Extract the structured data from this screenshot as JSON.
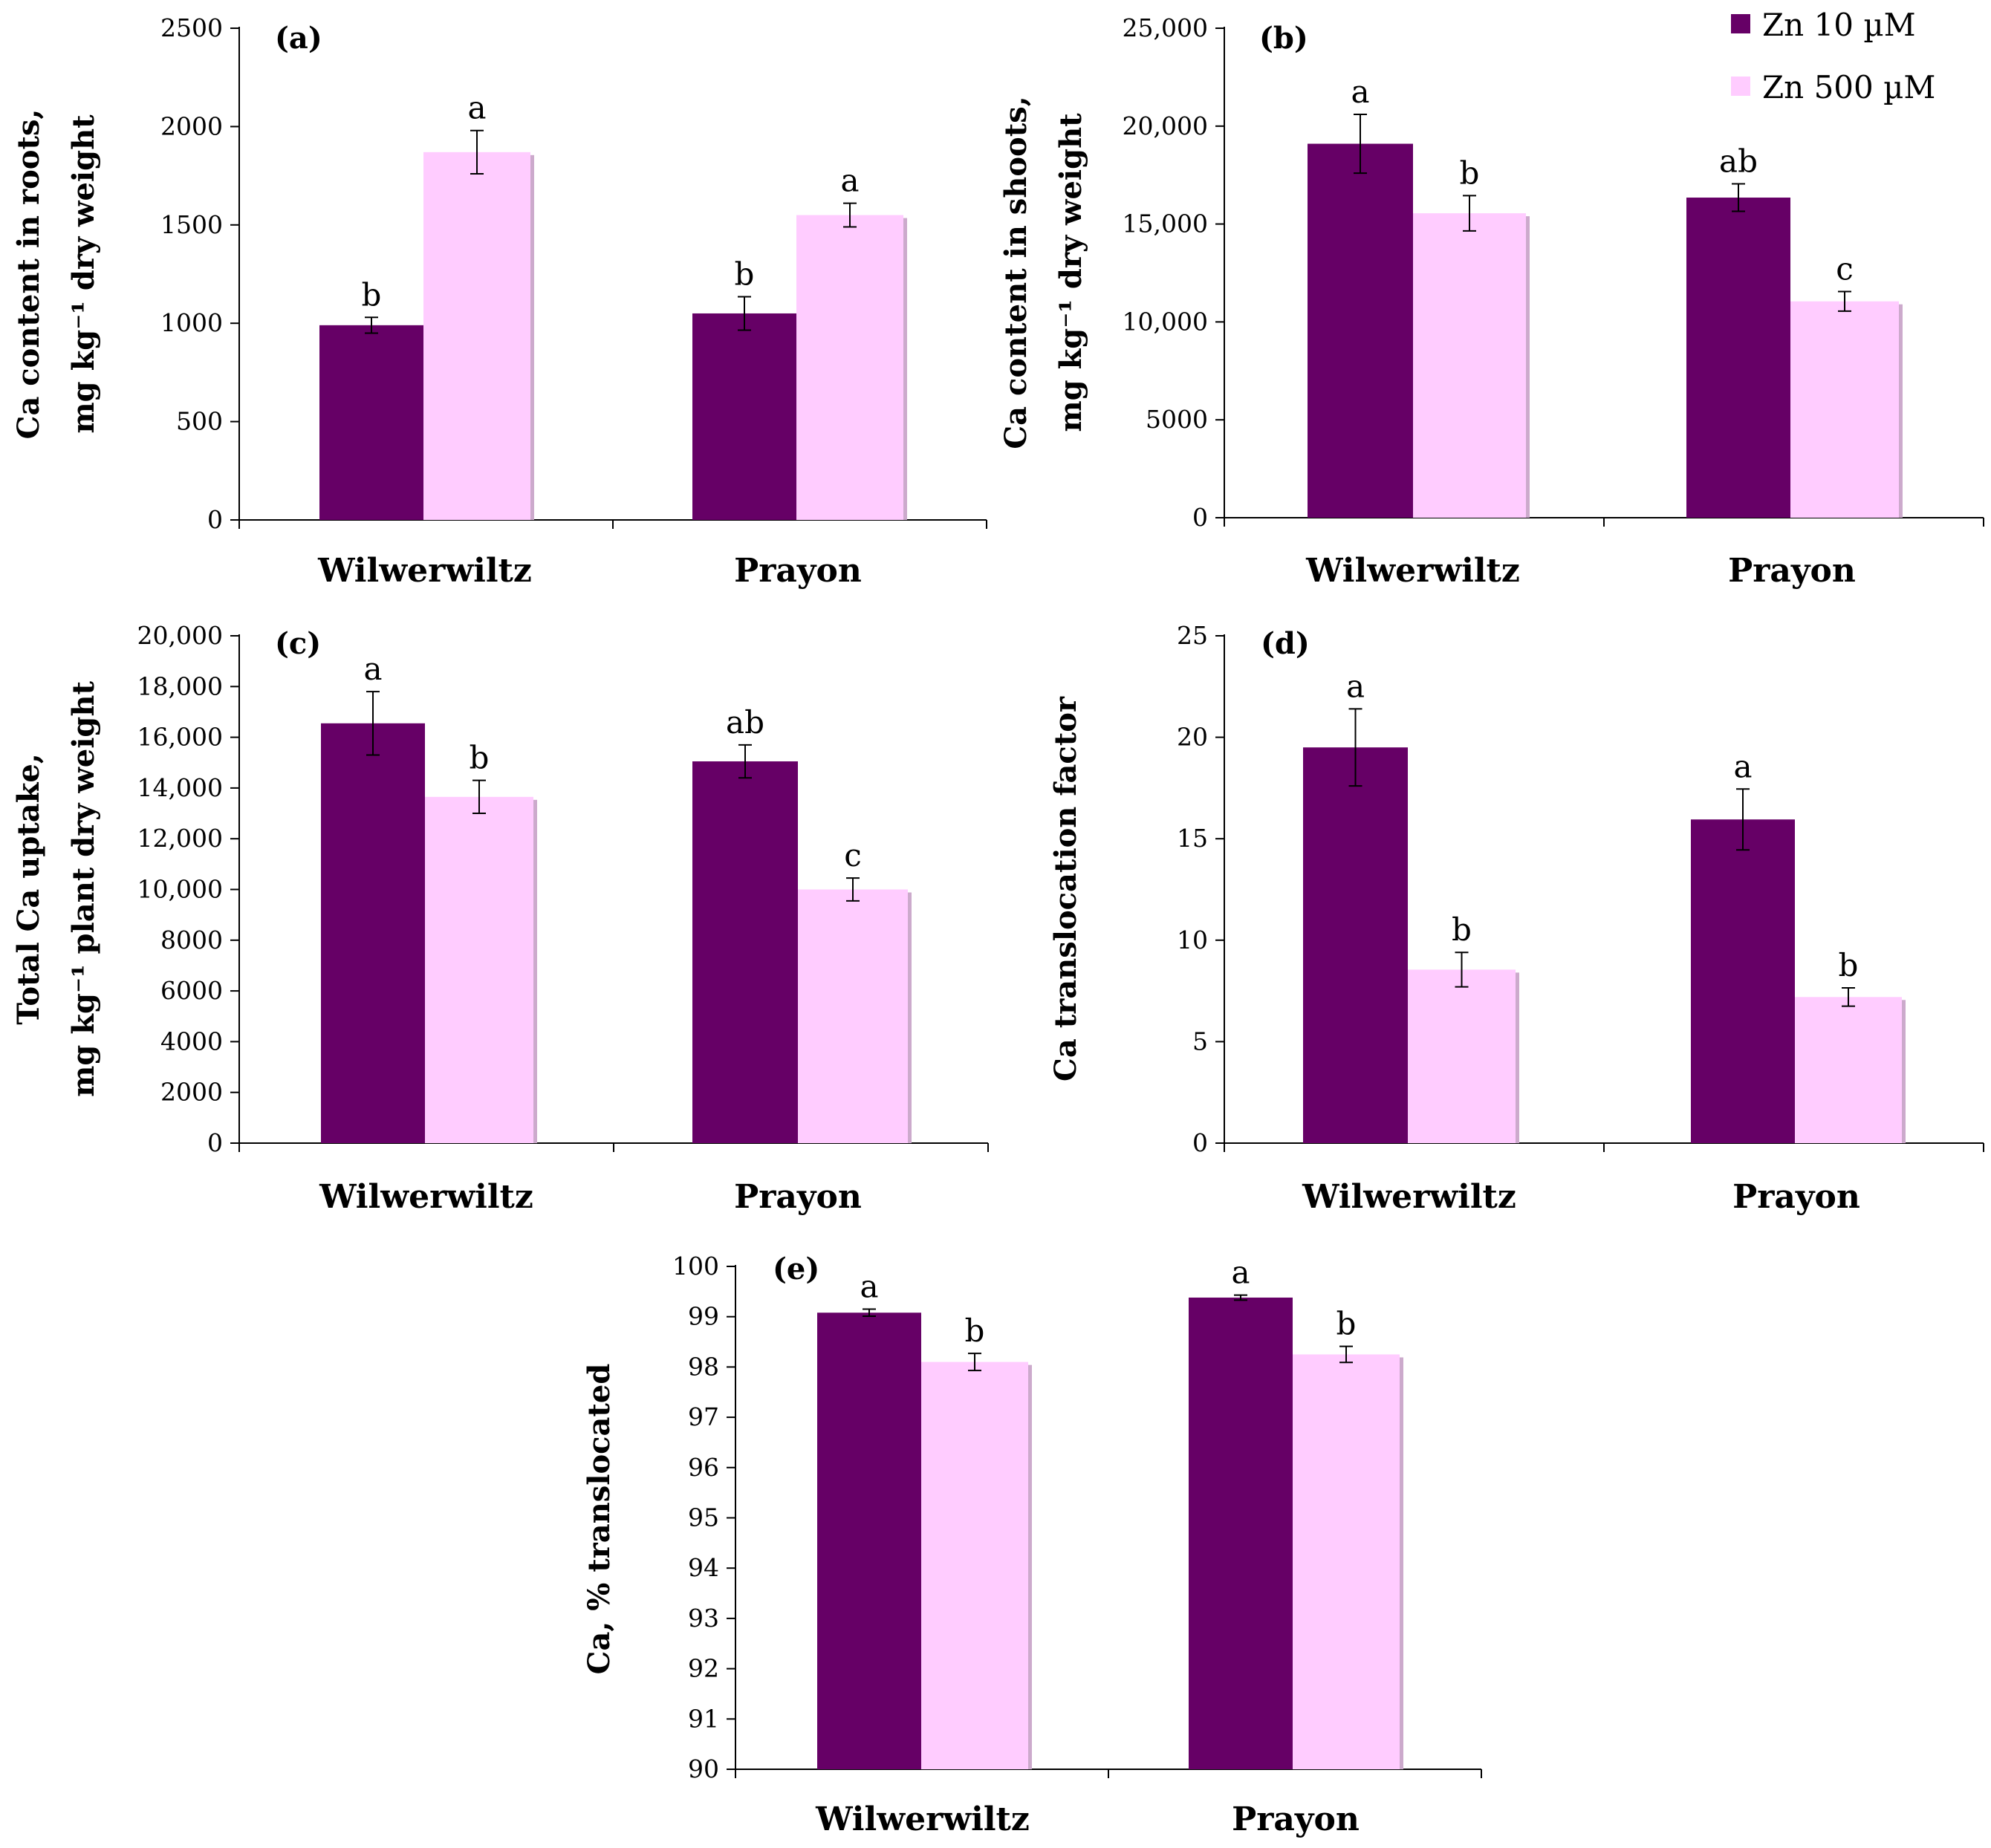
{
  "legend": {
    "zn10": "Zn 10 µM",
    "zn500": "Zn 500 µM"
  },
  "colors": {
    "zn10": "#660066",
    "zn500": "#ffccff",
    "zn500_shadow": "#ccaacc"
  },
  "chart_data": [
    {
      "id": "a",
      "type": "bar",
      "panel_label": "(a)",
      "categories": [
        "Wilwerwiltz",
        "Prayon"
      ],
      "series": [
        {
          "name": "Zn 10 µM",
          "values": [
            990,
            1050
          ],
          "errors": [
            40,
            85
          ],
          "letters": [
            "b",
            "b"
          ]
        },
        {
          "name": "Zn 500 µM",
          "values": [
            1870,
            1550
          ],
          "errors": [
            110,
            60
          ],
          "letters": [
            "a",
            "a"
          ]
        }
      ],
      "ylabel_lines": [
        "Ca content in roots,",
        "mg kg⁻¹ dry weight"
      ],
      "ylim": [
        0,
        2500
      ],
      "ticks": [
        0,
        500,
        1000,
        1500,
        2000,
        2500
      ],
      "tick_labels": [
        "0",
        "500",
        "1000",
        "1500",
        "2000",
        "2500"
      ]
    },
    {
      "id": "b",
      "type": "bar",
      "panel_label": "(b)",
      "categories": [
        "Wilwerwiltz",
        "Prayon"
      ],
      "series": [
        {
          "name": "Zn 10 µM",
          "values": [
            19100,
            16350
          ],
          "errors": [
            1500,
            700
          ],
          "letters": [
            "a",
            "ab"
          ]
        },
        {
          "name": "Zn 500 µM",
          "values": [
            15550,
            11050
          ],
          "errors": [
            900,
            500
          ],
          "letters": [
            "b",
            "c"
          ]
        }
      ],
      "ylabel_lines": [
        "Ca content in shoots,",
        "mg kg⁻¹ dry weight"
      ],
      "ylim": [
        0,
        25000
      ],
      "ticks": [
        0,
        5000,
        10000,
        15000,
        20000,
        25000
      ],
      "tick_labels": [
        "0",
        "5000",
        "10,000",
        "15,000",
        "20,000",
        "25,000"
      ]
    },
    {
      "id": "c",
      "type": "bar",
      "panel_label": "(c)",
      "categories": [
        "Wilwerwiltz",
        "Prayon"
      ],
      "series": [
        {
          "name": "Zn 10 µM",
          "values": [
            16550,
            15050
          ],
          "errors": [
            1250,
            650
          ],
          "letters": [
            "a",
            "ab"
          ]
        },
        {
          "name": "Zn 500 µM",
          "values": [
            13650,
            10000
          ],
          "errors": [
            650,
            450
          ],
          "letters": [
            "b",
            "c"
          ]
        }
      ],
      "ylabel_lines": [
        "Total Ca uptake,",
        "mg kg⁻¹ plant dry weight"
      ],
      "ylim": [
        0,
        20000
      ],
      "ticks": [
        0,
        2000,
        4000,
        6000,
        8000,
        10000,
        12000,
        14000,
        16000,
        18000,
        20000
      ],
      "tick_labels": [
        "0",
        "2000",
        "4000",
        "6000",
        "8000",
        "10,000",
        "12,000",
        "14,000",
        "16,000",
        "18,000",
        "20,000"
      ]
    },
    {
      "id": "d",
      "type": "bar",
      "panel_label": "(d)",
      "categories": [
        "Wilwerwiltz",
        "Prayon"
      ],
      "series": [
        {
          "name": "Zn 10 µM",
          "values": [
            19.5,
            15.95
          ],
          "errors": [
            1.9,
            1.5
          ],
          "letters": [
            "a",
            "a"
          ]
        },
        {
          "name": "Zn 500 µM",
          "values": [
            8.55,
            7.2
          ],
          "errors": [
            0.85,
            0.45
          ],
          "letters": [
            "b",
            "b"
          ]
        }
      ],
      "ylabel_lines": [
        "Ca translocation factor"
      ],
      "ylim": [
        0,
        25
      ],
      "ticks": [
        0,
        5,
        10,
        15,
        20,
        25
      ],
      "tick_labels": [
        "0",
        "5",
        "10",
        "15",
        "20",
        "25"
      ]
    },
    {
      "id": "e",
      "type": "bar",
      "panel_label": "(e)",
      "categories": [
        "Wilwerwiltz",
        "Prayon"
      ],
      "series": [
        {
          "name": "Zn 10 µM",
          "values": [
            99.08,
            99.38
          ],
          "errors": [
            0.07,
            0.05
          ],
          "letters": [
            "a",
            "a"
          ]
        },
        {
          "name": "Zn 500 µM",
          "values": [
            98.1,
            98.25
          ],
          "errors": [
            0.17,
            0.16
          ],
          "letters": [
            "b",
            "b"
          ]
        }
      ],
      "ylabel_lines": [
        "Ca, % translocated"
      ],
      "ylim": [
        90,
        100
      ],
      "ticks": [
        90,
        91,
        92,
        93,
        94,
        95,
        96,
        97,
        98,
        99,
        100
      ],
      "tick_labels": [
        "90",
        "91",
        "92",
        "93",
        "94",
        "95",
        "96",
        "97",
        "98",
        "99",
        "100"
      ]
    }
  ]
}
